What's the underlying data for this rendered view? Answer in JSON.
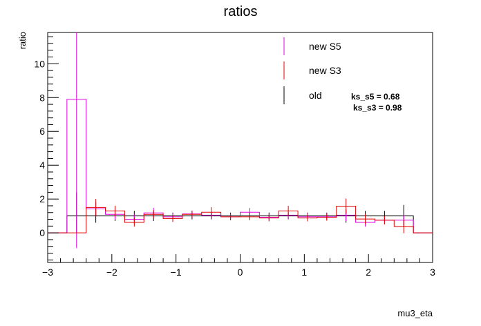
{
  "chart_data": {
    "type": "line",
    "title": "ratios",
    "xlabel": "mu3_eta",
    "ylabel": "ratio",
    "xlim": [
      -3,
      3
    ],
    "ylim": [
      -1.75,
      11.85
    ],
    "x_ticks": [
      -3,
      -2,
      -1,
      0,
      1,
      2,
      3
    ],
    "x_tick_labels": [
      "−3",
      "−2",
      "−1",
      "0",
      "1",
      "2",
      "3"
    ],
    "y_ticks": [
      0,
      2,
      4,
      6,
      8,
      10
    ],
    "y_tick_labels": [
      "0",
      "2",
      "4",
      "6",
      "8",
      "10"
    ],
    "grid": false,
    "legend_position": "top-right",
    "bin_edges": [
      -2.7,
      -2.4,
      -2.1,
      -1.8,
      -1.5,
      -1.2,
      -0.9,
      -0.6,
      -0.3,
      0.0,
      0.3,
      0.6,
      0.9,
      1.2,
      1.5,
      1.8,
      2.1,
      2.4,
      2.7
    ],
    "series": [
      {
        "name": "new S5",
        "color": "#e000e0",
        "values": [
          7.9,
          1.42,
          1.1,
          0.8,
          1.18,
          0.95,
          1.12,
          1.05,
          0.95,
          1.22,
          0.92,
          1.05,
          0.95,
          0.95,
          1.05,
          0.62,
          0.75,
          0.75
        ],
        "errors_low": [
          8.8,
          0.4,
          0.3,
          0.3,
          0.3,
          0.2,
          0.2,
          0.2,
          0.2,
          0.25,
          0.2,
          0.25,
          0.2,
          0.2,
          0.35,
          0.25,
          0.2,
          0.3
        ],
        "errors_high": [
          3.95,
          0.4,
          0.3,
          0.3,
          0.3,
          0.2,
          0.2,
          0.2,
          0.2,
          0.25,
          0.2,
          0.25,
          0.2,
          0.2,
          0.35,
          0.25,
          0.2,
          0.3
        ]
      },
      {
        "name": "new S3",
        "color": "#e00000",
        "values": [
          0.0,
          1.5,
          1.3,
          0.62,
          1.1,
          0.85,
          1.1,
          1.22,
          0.95,
          0.95,
          0.88,
          1.3,
          0.88,
          0.92,
          1.58,
          0.82,
          0.75,
          0.38
        ],
        "errors_low": [
          0.0,
          0.5,
          0.3,
          0.25,
          0.25,
          0.2,
          0.2,
          0.3,
          0.2,
          0.2,
          0.2,
          0.3,
          0.2,
          0.2,
          0.45,
          0.3,
          0.25,
          0.4
        ],
        "errors_high": [
          0.0,
          0.5,
          0.3,
          0.25,
          0.25,
          0.2,
          0.2,
          0.3,
          0.2,
          0.2,
          0.2,
          0.3,
          0.2,
          0.2,
          0.45,
          0.3,
          0.25,
          0.4
        ]
      },
      {
        "name": "old",
        "color": "#000000",
        "values": [
          1,
          1,
          1,
          1,
          1,
          1,
          1,
          1,
          1,
          1,
          1,
          1,
          1,
          1,
          1,
          1,
          1,
          1
        ],
        "errors_low": [
          1.0,
          0.4,
          0.3,
          0.3,
          0.3,
          0.2,
          0.2,
          0.2,
          0.2,
          0.2,
          0.2,
          0.2,
          0.2,
          0.2,
          0.4,
          0.3,
          0.3,
          0.65
        ],
        "errors_high": [
          1.4,
          0.4,
          0.3,
          0.3,
          0.3,
          0.2,
          0.2,
          0.2,
          0.2,
          0.2,
          0.2,
          0.2,
          0.2,
          0.2,
          0.4,
          0.3,
          0.3,
          0.65
        ]
      }
    ],
    "annotations": [
      "ks_s5 = 0.68",
      "ks_s3 = 0.98"
    ]
  }
}
